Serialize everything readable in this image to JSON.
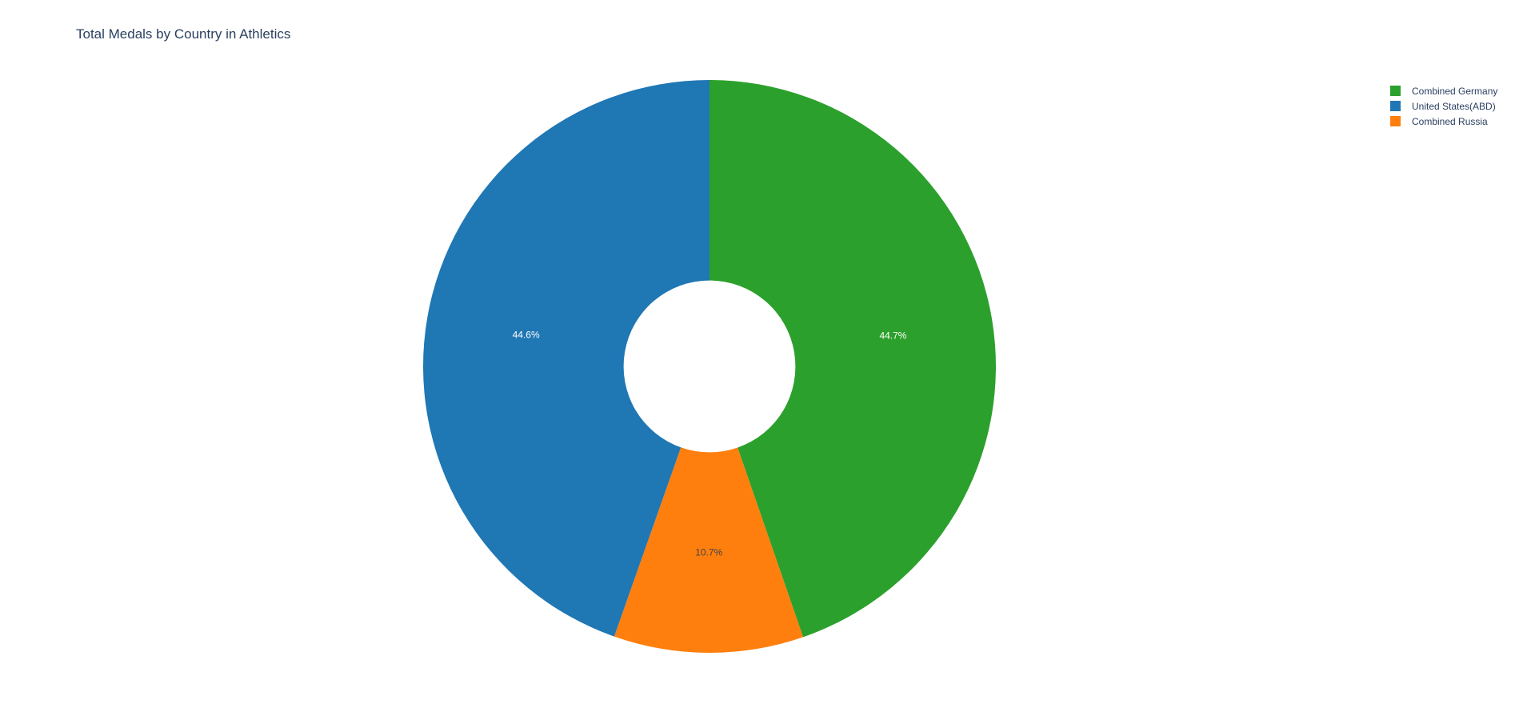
{
  "chart_data": {
    "type": "pie",
    "hole": 0.3,
    "title": "Total Medals by Country in Athletics",
    "direction": "clockwise",
    "start_angle_deg": 90,
    "slices": [
      {
        "label": "Combined Germany",
        "percent": 44.7,
        "percent_text": "44.7%",
        "color": "#2ca02c",
        "text_color": "#ffffff"
      },
      {
        "label": "Combined Russia",
        "percent": 10.7,
        "percent_text": "10.7%",
        "color": "#ff7f0e",
        "text_color": "#444444"
      },
      {
        "label": "United States(ABD)",
        "percent": 44.6,
        "percent_text": "44.6%",
        "color": "#1f77b4",
        "text_color": "#ffffff"
      }
    ],
    "legend": {
      "position": "top-right",
      "entries": [
        {
          "label": "Combined Germany",
          "color": "#2ca02c"
        },
        {
          "label": "United States(ABD)",
          "color": "#1f77b4"
        },
        {
          "label": "Combined Russia",
          "color": "#ff7f0e"
        }
      ]
    }
  }
}
